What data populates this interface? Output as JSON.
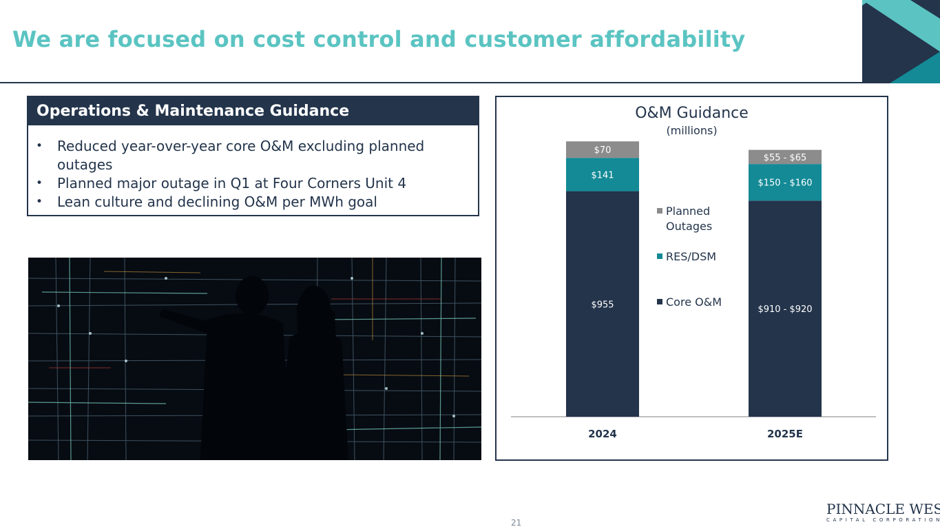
{
  "slide": {
    "title": "We are focused on cost control and customer affordability",
    "page_number": "21"
  },
  "guidance": {
    "header": "Operations & Maintenance Guidance",
    "bullet_char": "•",
    "bullets": [
      "Reduced year-over-year core O&M excluding planned outages",
      "Planned major outage in Q1 at Four Corners Unit 4",
      "Lean culture and declining O&M per MWh goal"
    ]
  },
  "photo": {
    "name": "control-room-photo"
  },
  "logo": {
    "name": "PINNACLE WEST",
    "subtitle": "CAPITAL CORPORATION"
  },
  "colors": {
    "navy": "#23344b",
    "teal": "#138a96",
    "gray": "#8c8c8c",
    "title_teal": "#5bc4c2"
  },
  "chart_data": {
    "type": "bar",
    "stacked": true,
    "title": "O&M Guidance",
    "subtitle": "(millions)",
    "categories": [
      "2024",
      "2025E"
    ],
    "series": [
      {
        "name": "Core O&M",
        "color": "#23344b",
        "values": [
          955,
          915
        ],
        "labels": [
          "$955",
          "$910 - $920"
        ]
      },
      {
        "name": "RES/DSM",
        "color": "#138a96",
        "values": [
          141,
          155
        ],
        "labels": [
          "$141",
          "$150 - $160"
        ]
      },
      {
        "name": "Planned Outages",
        "color": "#8c8c8c",
        "values": [
          70,
          60
        ],
        "labels": [
          "$70",
          "$55 - $65"
        ]
      }
    ],
    "legend_order": [
      "Planned Outages",
      "RES/DSM",
      "Core O&M"
    ],
    "legend_position": "center",
    "grid": false,
    "ylim": [
      0,
      1400
    ]
  }
}
